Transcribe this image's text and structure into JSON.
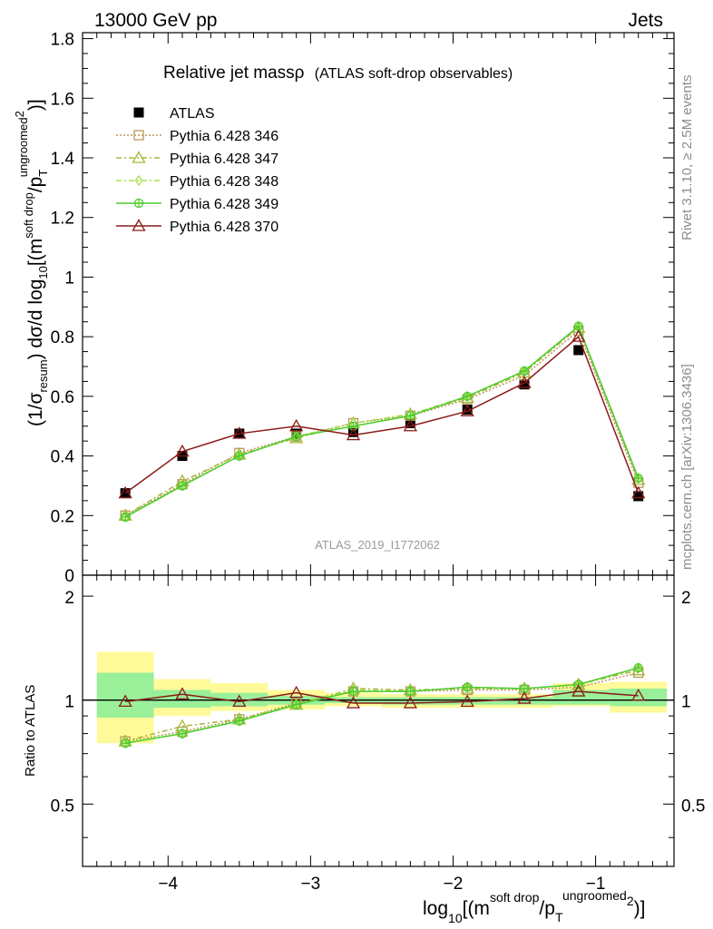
{
  "header": {
    "left": "13000 GeV pp",
    "right": "Jets"
  },
  "side_labels": {
    "rivet": "Rivet 3.1.10, ≥ 2.5M events",
    "mcplots": "mcplots.cern.ch [arXiv:1306.3436]"
  },
  "analysis_tag": "ATLAS_2019_I1772062",
  "colors": {
    "atlas": "#000000",
    "p346": "#b8985a",
    "p347": "#a8b83a",
    "p348": "#a8e050",
    "p349": "#4ccc2c",
    "p370": "#8b1a1a",
    "band_yellow": "#fffa99",
    "band_green": "#99f099"
  },
  "chart_data": [
    {
      "type": "line",
      "title_main": "Relative jet massρ",
      "title_sub": "(ATLAS soft-drop observables)",
      "ylabel": {
        "lead": "(1/σ",
        "sub1": "resum",
        "mid": ") dσ/d log",
        "sub2": "10",
        "pre": "[(m",
        "sup1": "soft drop",
        "slash": "/p",
        "sub3": "T",
        "sup2": "ungroomed",
        "sup3": "2",
        "tail": ")]"
      },
      "xlim": [
        -4.6,
        -0.45
      ],
      "ylim": [
        0,
        1.82
      ],
      "yticks": [
        0,
        0.2,
        0.4,
        0.6,
        0.8,
        1,
        1.2,
        1.4,
        1.6,
        1.8
      ],
      "ytick_labels": [
        "0",
        "0.2",
        "0.4",
        "0.6",
        "0.8",
        "1",
        "1.2",
        "1.4",
        "1.6",
        "1.8"
      ],
      "legend_position": "top-left",
      "x": [
        -4.3,
        -3.9,
        -3.5,
        -3.1,
        -2.7,
        -2.3,
        -1.9,
        -1.5,
        -1.12,
        -0.7
      ],
      "series": [
        {
          "name": "ATLAS",
          "marker": "square",
          "values": [
            0.275,
            0.4,
            0.475,
            0.475,
            0.48,
            0.51,
            0.555,
            0.64,
            0.755,
            0.265
          ]
        },
        {
          "name": "Pythia 6.428 346",
          "marker": "open-square",
          "values": [
            0.2,
            0.305,
            0.41,
            0.465,
            0.51,
            0.535,
            0.59,
            0.67,
            0.82,
            0.31
          ]
        },
        {
          "name": "Pythia 6.428 347",
          "marker": "open-triangle",
          "values": [
            0.2,
            0.315,
            0.405,
            0.46,
            0.51,
            0.54,
            0.595,
            0.68,
            0.83,
            0.32
          ]
        },
        {
          "name": "Pythia 6.428 348",
          "marker": "open-diamond",
          "values": [
            0.195,
            0.3,
            0.4,
            0.465,
            0.51,
            0.54,
            0.6,
            0.685,
            0.835,
            0.325
          ]
        },
        {
          "name": "Pythia 6.428 349",
          "marker": "plus-circle",
          "values": [
            0.195,
            0.3,
            0.4,
            0.465,
            0.5,
            0.535,
            0.6,
            0.685,
            0.835,
            0.325
          ]
        },
        {
          "name": "Pythia 6.428 370",
          "marker": "open-triangle",
          "values": [
            0.275,
            0.415,
            0.475,
            0.5,
            0.47,
            0.5,
            0.55,
            0.645,
            0.8,
            0.275
          ]
        }
      ]
    },
    {
      "type": "line",
      "ylabel": "Ratio to ATLAS",
      "xlabel": {
        "pre": "log",
        "sub1": "10",
        "mid": "[(m",
        "sup1": "soft drop",
        "slash": "/p",
        "sub2": "T",
        "sup2": "ungroomed",
        "sup3": "2",
        "tail": ")]"
      },
      "xlim": [
        -4.6,
        -0.45
      ],
      "ylim": [
        0.33,
        2.3
      ],
      "yscale": "log",
      "yticks": [
        0.5,
        1,
        2
      ],
      "ytick_labels": [
        "0.5",
        "1",
        "2"
      ],
      "xticks": [
        -4,
        -3,
        -2,
        -1
      ],
      "xtick_labels": [
        "−4",
        "−3",
        "−2",
        "−1"
      ],
      "uncertainty_bands": {
        "x_edges": [
          [
            -4.5,
            -4.1
          ],
          [
            -4.1,
            -3.7
          ],
          [
            -3.7,
            -3.3
          ],
          [
            -3.3,
            -2.9
          ],
          [
            -2.9,
            -2.5
          ],
          [
            -2.5,
            -2.1
          ],
          [
            -2.1,
            -1.7
          ],
          [
            -1.7,
            -1.3
          ],
          [
            -1.3,
            -0.9
          ],
          [
            -0.9,
            -0.5
          ]
        ],
        "outer": [
          [
            0.75,
            1.38
          ],
          [
            0.9,
            1.15
          ],
          [
            0.93,
            1.12
          ],
          [
            0.94,
            1.07
          ],
          [
            0.96,
            1.05
          ],
          [
            0.95,
            1.04
          ],
          [
            0.95,
            1.04
          ],
          [
            0.95,
            1.04
          ],
          [
            0.96,
            1.12
          ],
          [
            0.92,
            1.13
          ]
        ],
        "inner": [
          [
            0.89,
            1.2
          ],
          [
            0.95,
            1.07
          ],
          [
            0.96,
            1.05
          ],
          [
            0.97,
            1.03
          ],
          [
            0.98,
            1.02
          ],
          [
            0.97,
            1.02
          ],
          [
            0.97,
            1.02
          ],
          [
            0.97,
            1.02
          ],
          [
            0.97,
            1.07
          ],
          [
            0.96,
            1.08
          ]
        ]
      },
      "x": [
        -4.3,
        -3.9,
        -3.5,
        -3.1,
        -2.7,
        -2.3,
        -1.9,
        -1.5,
        -1.12,
        -0.7
      ],
      "series": [
        {
          "name": "Pythia 6.428 346",
          "values": [
            0.76,
            0.81,
            0.88,
            0.98,
            1.06,
            1.06,
            1.07,
            1.07,
            1.09,
            1.2
          ]
        },
        {
          "name": "Pythia 6.428 347",
          "values": [
            0.76,
            0.84,
            0.88,
            0.97,
            1.08,
            1.07,
            1.08,
            1.08,
            1.11,
            1.22
          ]
        },
        {
          "name": "Pythia 6.428 348",
          "values": [
            0.75,
            0.8,
            0.87,
            0.97,
            1.07,
            1.06,
            1.09,
            1.08,
            1.11,
            1.24
          ]
        },
        {
          "name": "Pythia 6.428 349",
          "values": [
            0.75,
            0.8,
            0.87,
            0.97,
            1.06,
            1.06,
            1.09,
            1.08,
            1.11,
            1.24
          ]
        },
        {
          "name": "Pythia 6.428 370",
          "values": [
            0.99,
            1.04,
            0.99,
            1.05,
            0.98,
            0.98,
            0.99,
            1.01,
            1.06,
            1.03
          ]
        }
      ]
    }
  ]
}
